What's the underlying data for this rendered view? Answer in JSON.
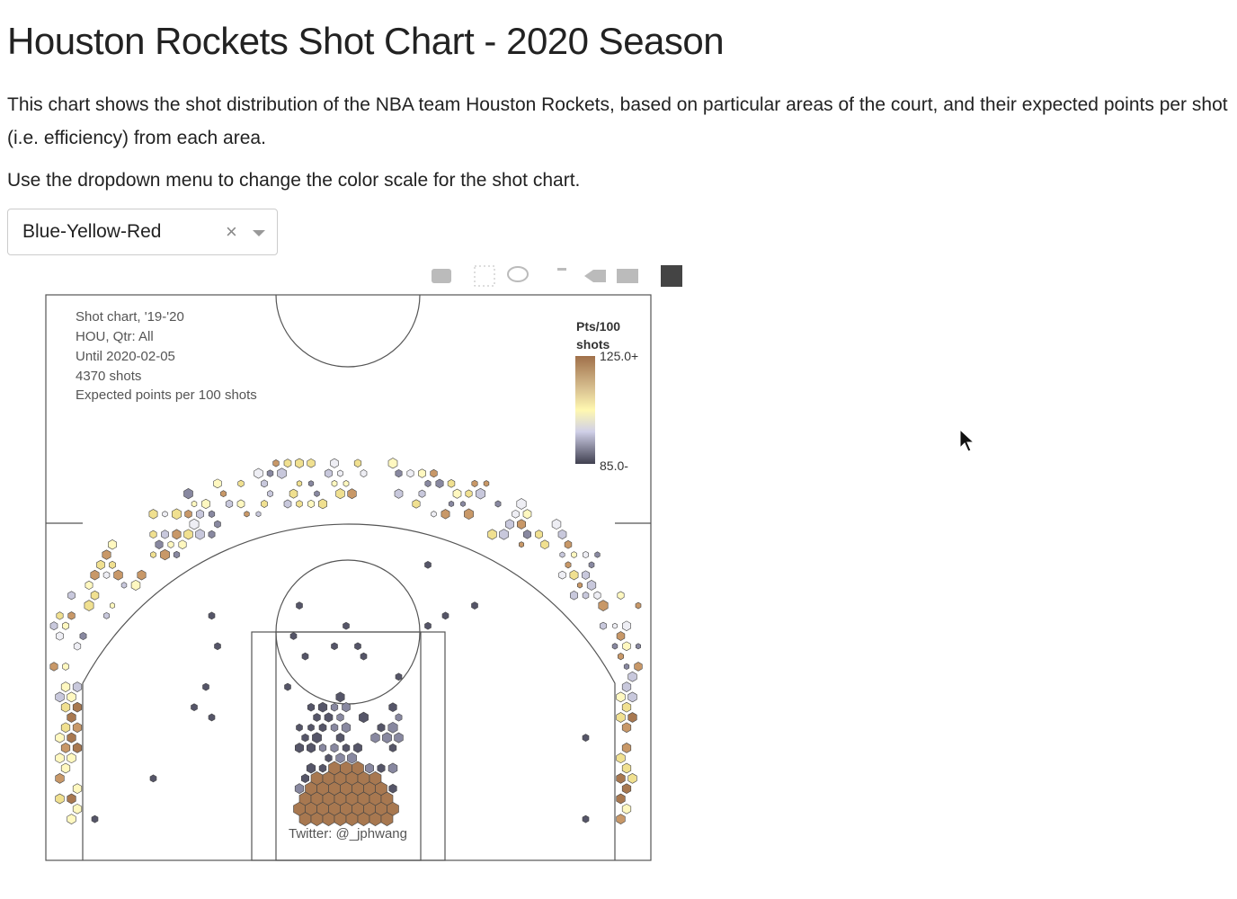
{
  "header": {
    "title": "Houston Rockets Shot Chart - 2020 Season"
  },
  "description": [
    "This chart shows the shot distribution of the NBA team Houston Rockets, based on particular areas of the court, and their expected points per shot (i.e. efficiency) from each area.",
    "Use the dropdown menu to change the color scale for the shot chart."
  ],
  "dropdown": {
    "selected": "Blue-Yellow-Red"
  },
  "chart": {
    "annotation": [
      "Shot chart, '19-'20",
      "HOU, Qtr: All",
      "Until 2020-02-05",
      "4370 shots",
      "Expected points per 100 shots"
    ],
    "colorbar": {
      "title": [
        "Pts/100",
        "shots"
      ],
      "labels": [
        "125.0+",
        "85.0-"
      ]
    },
    "credit": "Twitter: @_jphwang"
  }
}
